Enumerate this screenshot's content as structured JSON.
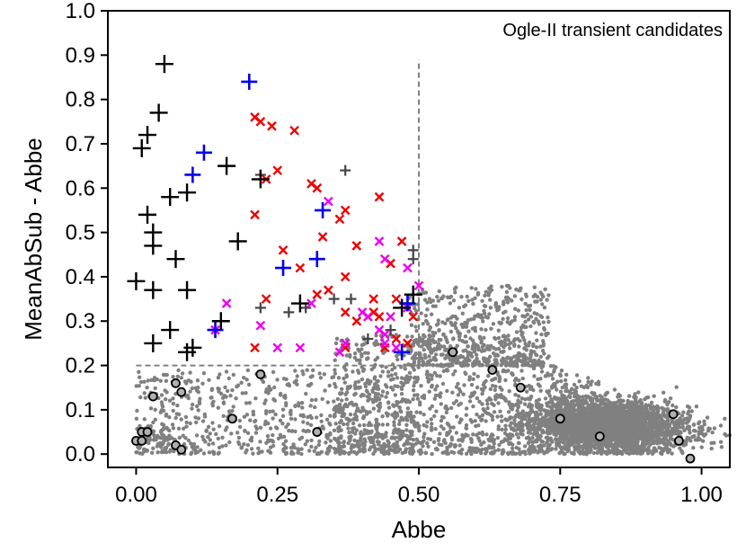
{
  "chart_data": {
    "type": "scatter",
    "title": "",
    "annotation": "Ogle-II transient candidates",
    "xlabel": "Abbe",
    "ylabel": "MeanAbSub - Abbe",
    "xlim": [
      -0.05,
      1.05
    ],
    "ylim": [
      -0.03,
      1.0
    ],
    "x_ticks": [
      0.0,
      0.25,
      0.5,
      0.75,
      1.0
    ],
    "x_tick_labels": [
      "0.00",
      "0.25",
      "0.50",
      "0.75",
      "1.00"
    ],
    "y_ticks": [
      0.0,
      0.1,
      0.2,
      0.3,
      0.4,
      0.5,
      0.6,
      0.7,
      0.8,
      0.9,
      1.0
    ],
    "y_tick_labels": [
      "0.0",
      "0.1",
      "0.2",
      "0.3",
      "0.4",
      "0.5",
      "0.6",
      "0.7",
      "0.8",
      "0.9",
      "1.0"
    ],
    "grid": false,
    "selection_box": {
      "x_max": 0.5,
      "y_min": 0.2,
      "y_max": 0.89
    },
    "colors": {
      "background_points": "#808080",
      "black_plus": "#000000",
      "blue_plus": "#0000ee",
      "red_x": "#ee0000",
      "magenta_x": "#ee00ee",
      "dark_plus": "#444444",
      "circle_edge": "#000000",
      "dashed_line": "#808080"
    },
    "series": [
      {
        "style": "black-plus",
        "points": [
          [
            0.05,
            0.88
          ],
          [
            0.04,
            0.77
          ],
          [
            0.01,
            0.69
          ],
          [
            0.02,
            0.72
          ],
          [
            0.02,
            0.54
          ],
          [
            0.03,
            0.5
          ],
          [
            0.03,
            0.47
          ],
          [
            0.0,
            0.39
          ],
          [
            0.03,
            0.37
          ],
          [
            0.07,
            0.44
          ],
          [
            0.06,
            0.58
          ],
          [
            0.09,
            0.59
          ],
          [
            0.09,
            0.37
          ],
          [
            0.06,
            0.28
          ],
          [
            0.03,
            0.25
          ],
          [
            0.09,
            0.23
          ],
          [
            0.1,
            0.24
          ],
          [
            0.15,
            0.3
          ],
          [
            0.16,
            0.65
          ],
          [
            0.18,
            0.48
          ],
          [
            0.22,
            0.62
          ],
          [
            0.29,
            0.34
          ],
          [
            0.49,
            0.36
          ],
          [
            0.47,
            0.33
          ]
        ]
      },
      {
        "style": "blue-plus",
        "points": [
          [
            0.2,
            0.84
          ],
          [
            0.12,
            0.68
          ],
          [
            0.1,
            0.63
          ],
          [
            0.33,
            0.55
          ],
          [
            0.26,
            0.42
          ],
          [
            0.32,
            0.44
          ],
          [
            0.14,
            0.28
          ],
          [
            0.47,
            0.23
          ],
          [
            0.48,
            0.34
          ]
        ]
      },
      {
        "style": "red-x",
        "points": [
          [
            0.21,
            0.76
          ],
          [
            0.22,
            0.75
          ],
          [
            0.24,
            0.74
          ],
          [
            0.28,
            0.73
          ],
          [
            0.25,
            0.64
          ],
          [
            0.23,
            0.62
          ],
          [
            0.31,
            0.61
          ],
          [
            0.32,
            0.6
          ],
          [
            0.21,
            0.54
          ],
          [
            0.37,
            0.55
          ],
          [
            0.43,
            0.58
          ],
          [
            0.26,
            0.46
          ],
          [
            0.29,
            0.42
          ],
          [
            0.33,
            0.49
          ],
          [
            0.36,
            0.53
          ],
          [
            0.39,
            0.47
          ],
          [
            0.45,
            0.43
          ],
          [
            0.47,
            0.48
          ],
          [
            0.37,
            0.4
          ],
          [
            0.34,
            0.37
          ],
          [
            0.32,
            0.36
          ],
          [
            0.23,
            0.35
          ],
          [
            0.42,
            0.35
          ],
          [
            0.37,
            0.32
          ],
          [
            0.39,
            0.3
          ],
          [
            0.41,
            0.31
          ],
          [
            0.42,
            0.32
          ],
          [
            0.43,
            0.31
          ],
          [
            0.46,
            0.35
          ],
          [
            0.49,
            0.31
          ],
          [
            0.48,
            0.25
          ],
          [
            0.37,
            0.24
          ],
          [
            0.21,
            0.24
          ],
          [
            0.44,
            0.24
          ],
          [
            0.46,
            0.26
          ]
        ]
      },
      {
        "style": "magenta-x",
        "points": [
          [
            0.34,
            0.57
          ],
          [
            0.43,
            0.48
          ],
          [
            0.44,
            0.44
          ],
          [
            0.48,
            0.42
          ],
          [
            0.5,
            0.38
          ],
          [
            0.31,
            0.34
          ],
          [
            0.16,
            0.34
          ],
          [
            0.14,
            0.28
          ],
          [
            0.22,
            0.29
          ],
          [
            0.25,
            0.24
          ],
          [
            0.29,
            0.24
          ],
          [
            0.36,
            0.23
          ],
          [
            0.37,
            0.25
          ],
          [
            0.4,
            0.32
          ],
          [
            0.41,
            0.31
          ],
          [
            0.43,
            0.28
          ],
          [
            0.44,
            0.27
          ],
          [
            0.44,
            0.25
          ],
          [
            0.46,
            0.24
          ],
          [
            0.48,
            0.33
          ],
          [
            0.45,
            0.31
          ]
        ]
      },
      {
        "style": "dark-plus",
        "points": [
          [
            0.37,
            0.64
          ],
          [
            0.22,
            0.63
          ],
          [
            0.22,
            0.33
          ],
          [
            0.27,
            0.32
          ],
          [
            0.38,
            0.35
          ],
          [
            0.35,
            0.35
          ],
          [
            0.41,
            0.26
          ],
          [
            0.45,
            0.28
          ],
          [
            0.49,
            0.46
          ],
          [
            0.49,
            0.44
          ],
          [
            0.3,
            0.33
          ]
        ]
      },
      {
        "style": "open-circle",
        "points": [
          [
            0.0,
            0.03
          ],
          [
            0.01,
            0.03
          ],
          [
            0.01,
            0.05
          ],
          [
            0.02,
            0.05
          ],
          [
            0.03,
            0.13
          ],
          [
            0.07,
            0.16
          ],
          [
            0.08,
            0.14
          ],
          [
            0.07,
            0.02
          ],
          [
            0.08,
            0.01
          ],
          [
            0.17,
            0.08
          ],
          [
            0.22,
            0.18
          ],
          [
            0.32,
            0.05
          ],
          [
            0.56,
            0.23
          ],
          [
            0.63,
            0.19
          ],
          [
            0.68,
            0.15
          ],
          [
            0.75,
            0.08
          ],
          [
            0.82,
            0.04
          ],
          [
            0.95,
            0.09
          ],
          [
            0.96,
            0.03
          ],
          [
            0.98,
            -0.01
          ]
        ]
      }
    ]
  }
}
